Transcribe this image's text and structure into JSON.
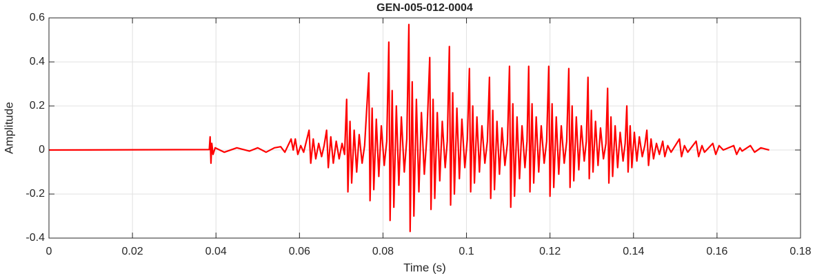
{
  "chart_data": {
    "type": "line",
    "title": "GEN-005-012-0004",
    "xlabel": "Time (s)",
    "ylabel": "Amplitude",
    "color": "#ff0000",
    "grid": true,
    "xlim": [
      0,
      0.18
    ],
    "xticks": [
      0,
      0.02,
      0.04,
      0.06,
      0.08,
      0.1,
      0.12,
      0.14,
      0.16,
      0.18
    ],
    "ylim": [
      -0.4,
      0.6
    ],
    "yticks": [
      -0.4,
      -0.2,
      0,
      0.2,
      0.4,
      0.6
    ],
    "x": [
      0,
      0.0384,
      0.0386,
      0.0388,
      0.039,
      0.0393,
      0.0398,
      0.042,
      0.045,
      0.048,
      0.05,
      0.052,
      0.054,
      0.0555,
      0.0565,
      0.058,
      0.0585,
      0.059,
      0.0596,
      0.0603,
      0.061,
      0.0623,
      0.0627,
      0.0633,
      0.0639,
      0.0646,
      0.0653,
      0.0659,
      0.0665,
      0.0669,
      0.0675,
      0.0681,
      0.0688,
      0.0695,
      0.0702,
      0.0708,
      0.0713,
      0.0716,
      0.0721,
      0.0725,
      0.0731,
      0.0737,
      0.0743,
      0.075,
      0.0756,
      0.0766,
      0.0769,
      0.0774,
      0.0778,
      0.0784,
      0.079,
      0.0796,
      0.0803,
      0.0809,
      0.0814,
      0.0817,
      0.0822,
      0.0826,
      0.0832,
      0.0838,
      0.0844,
      0.0851,
      0.0857,
      0.0862,
      0.0865,
      0.087,
      0.0874,
      0.088,
      0.0886,
      0.0892,
      0.0899,
      0.0905,
      0.0912,
      0.0915,
      0.092,
      0.0924,
      0.093,
      0.0936,
      0.0942,
      0.0949,
      0.0954,
      0.0959,
      0.0962,
      0.0967,
      0.0971,
      0.0977,
      0.0983,
      0.0989,
      0.0996,
      0.1002,
      0.1007,
      0.101,
      0.1015,
      0.1019,
      0.1025,
      0.1031,
      0.1037,
      0.1044,
      0.105,
      0.1055,
      0.1058,
      0.1063,
      0.1067,
      0.1073,
      0.1079,
      0.1085,
      0.1092,
      0.1098,
      0.1103,
      0.1106,
      0.1111,
      0.1115,
      0.1121,
      0.1127,
      0.1133,
      0.114,
      0.1145,
      0.1149,
      0.1152,
      0.1157,
      0.1161,
      0.1167,
      0.1173,
      0.1179,
      0.1186,
      0.1192,
      0.1197,
      0.12,
      0.1205,
      0.1209,
      0.1215,
      0.1221,
      0.1227,
      0.1234,
      0.124,
      0.1245,
      0.1248,
      0.1253,
      0.1257,
      0.1263,
      0.1269,
      0.1275,
      0.1282,
      0.1287,
      0.1291,
      0.1294,
      0.1299,
      0.1303,
      0.1309,
      0.1315,
      0.1321,
      0.1328,
      0.1334,
      0.1338,
      0.1341,
      0.1346,
      0.135,
      0.1356,
      0.1362,
      0.1368,
      0.1375,
      0.138,
      0.1384,
      0.1387,
      0.1392,
      0.1396,
      0.1402,
      0.1408,
      0.1414,
      0.1421,
      0.1427,
      0.1432,
      0.1436,
      0.1442,
      0.1448,
      0.1455,
      0.1462,
      0.147,
      0.1475,
      0.1482,
      0.149,
      0.151,
      0.1515,
      0.1522,
      0.153,
      0.155,
      0.1556,
      0.1564,
      0.157,
      0.159,
      0.1597,
      0.1605,
      0.1615,
      0.164,
      0.1647,
      0.1655,
      0.166,
      0.168,
      0.169,
      0.1705,
      0.1715,
      0.1725
    ],
    "values": [
      0,
      0.002,
      0.06,
      -0.06,
      0.03,
      -0.02,
      0.01,
      -0.01,
      0.01,
      -0.005,
      0.01,
      -0.01,
      0.01,
      0.015,
      -0.01,
      0.05,
      0.0,
      0.05,
      -0.02,
      0.02,
      -0.01,
      0.09,
      -0.06,
      0.05,
      -0.04,
      0.03,
      -0.03,
      0.02,
      0.09,
      -0.08,
      0.06,
      -0.06,
      0.04,
      -0.04,
      0.03,
      -0.02,
      0.23,
      -0.19,
      0.13,
      -0.15,
      0.09,
      -0.1,
      0.07,
      -0.06,
      0.02,
      0.35,
      -0.23,
      0.19,
      -0.18,
      0.14,
      -0.12,
      0.11,
      -0.07,
      0.04,
      0.49,
      -0.32,
      0.27,
      -0.26,
      0.2,
      -0.16,
      0.15,
      -0.1,
      0.05,
      0.57,
      -0.37,
      0.31,
      -0.3,
      0.23,
      -0.19,
      0.17,
      -0.11,
      0.06,
      0.42,
      -0.27,
      0.23,
      -0.22,
      0.17,
      -0.14,
      0.13,
      -0.08,
      0.04,
      0.47,
      -0.25,
      0.26,
      -0.2,
      0.19,
      -0.13,
      0.14,
      -0.08,
      0.05,
      0.37,
      -0.19,
      0.2,
      -0.15,
      0.15,
      -0.1,
      0.11,
      -0.06,
      0.04,
      0.33,
      -0.22,
      0.18,
      -0.18,
      0.13,
      -0.11,
      0.1,
      -0.07,
      0.03,
      0.38,
      -0.26,
      0.21,
      -0.21,
      0.15,
      -0.13,
      0.11,
      -0.08,
      0.04,
      0.38,
      -0.19,
      0.21,
      -0.15,
      0.15,
      -0.1,
      0.11,
      -0.06,
      0.04,
      0.38,
      -0.21,
      0.21,
      -0.17,
      0.15,
      -0.11,
      0.11,
      -0.06,
      0.04,
      0.37,
      -0.17,
      0.2,
      -0.14,
      0.15,
      -0.09,
      0.11,
      -0.05,
      0.04,
      0.33,
      -0.13,
      0.18,
      -0.1,
      0.13,
      -0.07,
      0.1,
      -0.04,
      0.03,
      0.28,
      -0.15,
      0.15,
      -0.12,
      0.11,
      -0.08,
      0.08,
      -0.05,
      0.03,
      0.2,
      -0.1,
      0.11,
      -0.08,
      0.08,
      -0.05,
      0.06,
      -0.03,
      0.02,
      0.09,
      -0.07,
      0.05,
      -0.04,
      0.03,
      -0.02,
      0.04,
      -0.03,
      0.02,
      -0.01,
      0.05,
      -0.03,
      0.02,
      -0.01,
      0.04,
      -0.03,
      0.02,
      -0.01,
      0.03,
      -0.02,
      0.02,
      0.0,
      0.02,
      -0.02,
      0.01,
      -0.005,
      0.02,
      -0.01,
      0.01,
      0.005,
      0.0
    ]
  }
}
